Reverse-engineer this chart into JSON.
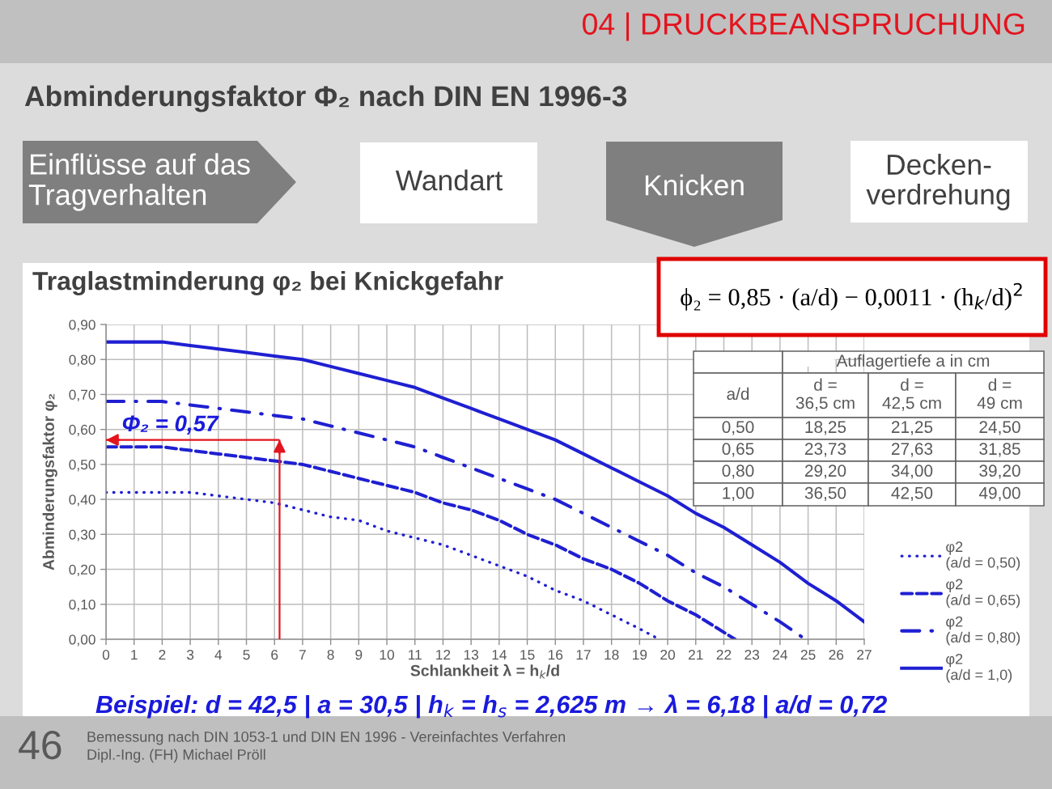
{
  "chart_data": {
    "type": "line",
    "title": "Traglastminderung φ₂ bei Knickgefahr",
    "xlabel": "Schlankheit λ = h$_{k}$/d",
    "ylabel": "Abminderungsfaktor φ₂",
    "xlim": [
      0,
      27
    ],
    "xticks": [
      0,
      1,
      2,
      3,
      4,
      5,
      6,
      7,
      8,
      9,
      10,
      11,
      12,
      13,
      14,
      15,
      16,
      17,
      18,
      19,
      20,
      21,
      22,
      23,
      24,
      25,
      26,
      27
    ],
    "ylim": [
      0,
      0.9
    ],
    "yticks": [
      {
        "value": 0,
        "label": "0,00"
      },
      {
        "value": 0.1,
        "label": "0,10"
      },
      {
        "value": 0.2,
        "label": "0,20"
      },
      {
        "value": 0.3,
        "label": "0,30"
      },
      {
        "value": 0.4,
        "label": "0,40"
      },
      {
        "value": 0.5,
        "label": "0,50"
      },
      {
        "value": 0.6,
        "label": "0,60"
      },
      {
        "value": 0.7,
        "label": "0,70"
      },
      {
        "value": 0.8,
        "label": "0,80"
      },
      {
        "value": 0.9,
        "label": "0,90"
      }
    ],
    "grid": true,
    "legend": "right",
    "series": [
      {
        "name": "φ2\n(a/d = 0,50)",
        "color": "#1f1fd2",
        "line_style": "dotted",
        "x": [
          0,
          1,
          2,
          3,
          4,
          5,
          6,
          7,
          8,
          9,
          10,
          11,
          12,
          13,
          14,
          15,
          16,
          17,
          18,
          19,
          19.7
        ],
        "values": [
          0.42,
          0.42,
          0.42,
          0.42,
          0.41,
          0.4,
          0.39,
          0.37,
          0.35,
          0.34,
          0.31,
          0.29,
          0.27,
          0.24,
          0.21,
          0.18,
          0.14,
          0.11,
          0.07,
          0.03,
          0.0
        ]
      },
      {
        "name": "φ2\n(a/d = 0,65)",
        "color": "#1f1fd2",
        "line_style": "dashed",
        "x": [
          0,
          1,
          2,
          3,
          4,
          5,
          6,
          7,
          8,
          9,
          10,
          11,
          12,
          13,
          14,
          15,
          16,
          17,
          18,
          19,
          20,
          21,
          22,
          22.4
        ],
        "values": [
          0.55,
          0.55,
          0.55,
          0.54,
          0.53,
          0.52,
          0.51,
          0.5,
          0.48,
          0.46,
          0.44,
          0.42,
          0.39,
          0.37,
          0.34,
          0.3,
          0.27,
          0.23,
          0.2,
          0.16,
          0.11,
          0.07,
          0.02,
          0.0
        ]
      },
      {
        "name": "φ2\n(a/d = 0,80)",
        "color": "#1f1fd2",
        "line_style": "dashdot",
        "x": [
          0,
          1,
          2,
          3,
          4,
          5,
          6,
          7,
          8,
          9,
          10,
          11,
          12,
          13,
          14,
          15,
          16,
          17,
          18,
          19,
          20,
          21,
          22,
          23,
          24,
          24.9
        ],
        "values": [
          0.68,
          0.68,
          0.68,
          0.67,
          0.66,
          0.65,
          0.64,
          0.63,
          0.61,
          0.59,
          0.57,
          0.55,
          0.52,
          0.49,
          0.46,
          0.43,
          0.4,
          0.36,
          0.32,
          0.28,
          0.24,
          0.19,
          0.15,
          0.1,
          0.05,
          0.0
        ]
      },
      {
        "name": "φ2\n(a/d = 1,0)",
        "color": "#1f1fd2",
        "line_style": "solid",
        "x": [
          0,
          1,
          2,
          3,
          4,
          5,
          6,
          7,
          8,
          9,
          10,
          11,
          12,
          13,
          14,
          15,
          16,
          17,
          18,
          19,
          20,
          21,
          22,
          23,
          24,
          25,
          26,
          27
        ],
        "values": [
          0.85,
          0.85,
          0.85,
          0.84,
          0.83,
          0.82,
          0.81,
          0.8,
          0.78,
          0.76,
          0.74,
          0.72,
          0.69,
          0.66,
          0.63,
          0.6,
          0.57,
          0.53,
          0.49,
          0.45,
          0.41,
          0.36,
          0.32,
          0.27,
          0.22,
          0.16,
          0.11,
          0.05
        ]
      }
    ],
    "ref_lines": [
      {
        "axis": "x",
        "value": 6.18,
        "color": "#e3141e"
      },
      {
        "axis": "y",
        "value": 0.57,
        "label": "Φ₂ = 0,57",
        "color": "#e3141e"
      }
    ],
    "annotations": [
      "04 | DRUCKBEANSPRUCHUNG",
      "Abminderungsfaktor Φ₂ nach DIN EN 1996-3",
      "Einflüsse auf das\nTragverhalten",
      "Wandart",
      "Knicken",
      "Decken-\nverdrehung",
      "ϕ₂ = 0,85 · (a/d) − 0,0011 · (h$_{k}$/d)$^{2}$",
      "Auflagertiefe a in cm",
      "a/d",
      "d =\n36,5 cm",
      "d =\n42,5 cm",
      "d =\n49 cm",
      "0,50",
      "18,25",
      "21,25",
      "24,50",
      "0,65",
      "23,73",
      "27,63",
      "31,85",
      "0,80",
      "29,20",
      "34,00",
      "39,20",
      "1,00",
      "36,50",
      "42,50",
      "49,00",
      "Beispiel: d = 42,5 | a = 30,5 | h$_{k}$ = h$_{s}$ = 2,625 m → λ = 6,18 | a/d = 0,72",
      "46",
      "Bemessung nach DIN 1053-1 und DIN EN 1996 - Vereinfachtes Verfahren",
      "Dipl.-Ing. (FH) Michael Pröll"
    ]
  }
}
